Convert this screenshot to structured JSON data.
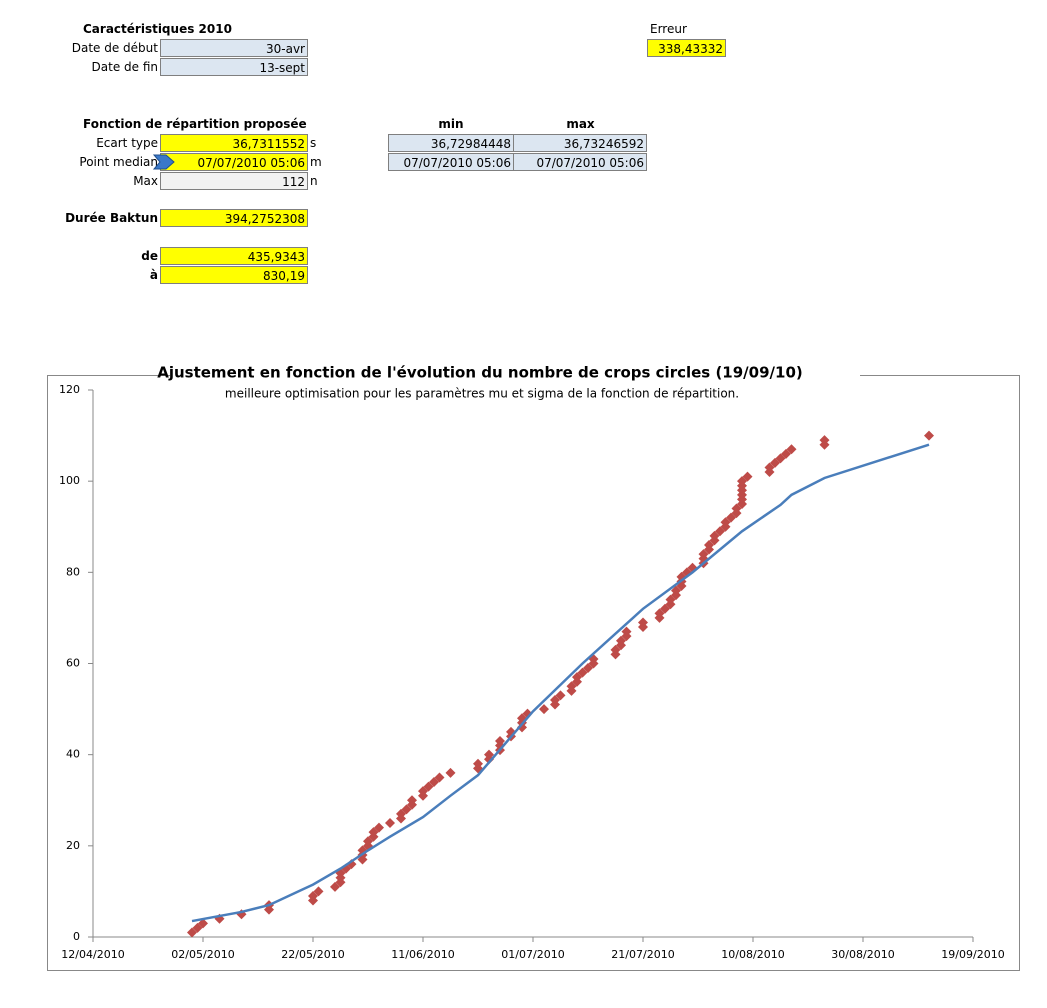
{
  "sheet": {
    "characteristics": {
      "title": "Caractéristiques 2010",
      "rows": [
        [
          "Date de début",
          "30-avr"
        ],
        [
          "Date de fin",
          "13-sept"
        ]
      ]
    },
    "error": {
      "label": "Erreur",
      "value": "338,43332"
    },
    "distribution": {
      "title": "Fonction de répartition proposée",
      "rows": [
        [
          "Ecart type",
          "36,7311552",
          "s"
        ],
        [
          "Point median",
          "07/07/2010 05:06",
          "m"
        ],
        [
          "Max",
          "112",
          "n"
        ]
      ]
    },
    "range": {
      "headers": [
        "min",
        "max"
      ],
      "rows": [
        [
          "36,72984448",
          "36,73246592"
        ],
        [
          "07/07/2010 05:06",
          "07/07/2010 05:06"
        ]
      ]
    },
    "baktun": {
      "label": "Durée Baktun",
      "value": "394,2752308"
    },
    "interval": [
      [
        "de",
        "435,9343"
      ],
      [
        "à",
        "830,19"
      ]
    ]
  },
  "chart_data": {
    "type": "scatter",
    "title": "Ajustement en fonction de l'évolution du nombre de crops circles (19/09/10)",
    "subtitle": "meilleure optimisation pour les paramètres mu et sigma de la fonction de répartition.",
    "xlim": [
      "2010-04-12",
      "2010-09-19"
    ],
    "xticks": [
      {
        "value": "2010-04-12",
        "label": "12/04/2010"
      },
      {
        "value": "2010-05-02",
        "label": "02/05/2010"
      },
      {
        "value": "2010-05-22",
        "label": "22/05/2010"
      },
      {
        "value": "2010-06-11",
        "label": "11/06/2010"
      },
      {
        "value": "2010-07-01",
        "label": "01/07/2010"
      },
      {
        "value": "2010-07-21",
        "label": "21/07/2010"
      },
      {
        "value": "2010-08-10",
        "label": "10/08/2010"
      },
      {
        "value": "2010-08-30",
        "label": "30/08/2010"
      },
      {
        "value": "2010-09-19",
        "label": "19/09/2010"
      }
    ],
    "ylim": [
      0,
      120
    ],
    "yticks": [
      0,
      20,
      40,
      60,
      80,
      100,
      120
    ],
    "grid": false,
    "series": [
      {
        "type": "scatter",
        "color": "#be4b48",
        "x": [
          "2010-04-30",
          "2010-05-01",
          "2010-05-02",
          "2010-05-05",
          "2010-05-09",
          "2010-05-14",
          "2010-05-14",
          "2010-05-22",
          "2010-05-22",
          "2010-05-23",
          "2010-05-26",
          "2010-05-27",
          "2010-05-27",
          "2010-05-27",
          "2010-05-28",
          "2010-05-29",
          "2010-05-31",
          "2010-05-31",
          "2010-05-31",
          "2010-06-01",
          "2010-06-01",
          "2010-06-02",
          "2010-06-02",
          "2010-06-03",
          "2010-06-05",
          "2010-06-07",
          "2010-06-07",
          "2010-06-08",
          "2010-06-09",
          "2010-06-09",
          "2010-06-11",
          "2010-06-11",
          "2010-06-12",
          "2010-06-13",
          "2010-06-14",
          "2010-06-16",
          "2010-06-21",
          "2010-06-21",
          "2010-06-23",
          "2010-06-23",
          "2010-06-25",
          "2010-06-25",
          "2010-06-25",
          "2010-06-27",
          "2010-06-27",
          "2010-06-29",
          "2010-06-29",
          "2010-06-29",
          "2010-06-30",
          "2010-07-03",
          "2010-07-05",
          "2010-07-05",
          "2010-07-06",
          "2010-07-08",
          "2010-07-08",
          "2010-07-09",
          "2010-07-09",
          "2010-07-10",
          "2010-07-11",
          "2010-07-12",
          "2010-07-12",
          "2010-07-16",
          "2010-07-16",
          "2010-07-17",
          "2010-07-17",
          "2010-07-18",
          "2010-07-18",
          "2010-07-21",
          "2010-07-21",
          "2010-07-24",
          "2010-07-24",
          "2010-07-25",
          "2010-07-26",
          "2010-07-26",
          "2010-07-27",
          "2010-07-27",
          "2010-07-28",
          "2010-07-28",
          "2010-07-28",
          "2010-07-29",
          "2010-07-30",
          "2010-08-01",
          "2010-08-01",
          "2010-08-01",
          "2010-08-02",
          "2010-08-02",
          "2010-08-03",
          "2010-08-03",
          "2010-08-04",
          "2010-08-05",
          "2010-08-05",
          "2010-08-06",
          "2010-08-07",
          "2010-08-07",
          "2010-08-08",
          "2010-08-08",
          "2010-08-08",
          "2010-08-08",
          "2010-08-08",
          "2010-08-08",
          "2010-08-09",
          "2010-08-13",
          "2010-08-13",
          "2010-08-14",
          "2010-08-15",
          "2010-08-16",
          "2010-08-17",
          "2010-08-23",
          "2010-08-23",
          "2010-09-11"
        ],
        "values": [
          1,
          2,
          3,
          4,
          5,
          6,
          7,
          8,
          9,
          10,
          11,
          12,
          13,
          14,
          15,
          16,
          17,
          18,
          19,
          20,
          21,
          22,
          23,
          24,
          25,
          26,
          27,
          28,
          29,
          30,
          31,
          32,
          33,
          34,
          35,
          36,
          37,
          38,
          39,
          40,
          41,
          42,
          43,
          44,
          45,
          46,
          47,
          48,
          49,
          50,
          51,
          52,
          53,
          54,
          55,
          56,
          57,
          58,
          59,
          60,
          61,
          62,
          63,
          64,
          65,
          66,
          67,
          68,
          69,
          70,
          71,
          72,
          73,
          74,
          75,
          76,
          77,
          78,
          79,
          80,
          81,
          82,
          83,
          84,
          85,
          86,
          87,
          88,
          89,
          90,
          91,
          92,
          93,
          94,
          95,
          96,
          97,
          98,
          99,
          100,
          101,
          102,
          103,
          104,
          105,
          106,
          107,
          108,
          109,
          110
        ]
      },
      {
        "type": "line",
        "color": "#4a7ebb",
        "x": [
          "2010-04-30",
          "2010-05-09",
          "2010-05-14",
          "2010-05-22",
          "2010-05-27",
          "2010-06-01",
          "2010-06-05",
          "2010-06-11",
          "2010-06-16",
          "2010-06-21",
          "2010-07-01",
          "2010-07-10",
          "2010-07-21",
          "2010-07-30",
          "2010-08-08",
          "2010-08-15",
          "2010-08-17",
          "2010-08-23",
          "2010-09-11"
        ],
        "values": [
          3.5,
          5.5,
          7,
          11.5,
          15,
          19,
          22,
          26.3,
          31,
          35.5,
          49.5,
          60,
          72,
          80,
          89,
          94.8,
          97,
          100.7,
          108
        ]
      }
    ]
  }
}
